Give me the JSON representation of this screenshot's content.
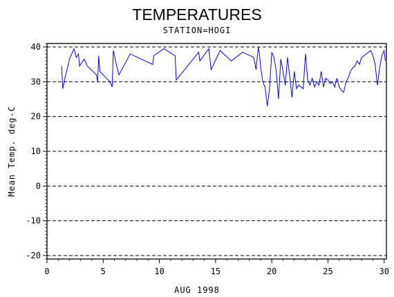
{
  "chart_data": {
    "type": "line",
    "title": "TEMPERATURES",
    "subtitle": "STATION=HOGI",
    "xlabel": "AUG 1998",
    "ylabel": "Mean Temp. deg-C",
    "xlim": [
      0,
      30.2
    ],
    "ylim": [
      -21,
      41
    ],
    "xticks": [
      0,
      5,
      10,
      15,
      20,
      25,
      30
    ],
    "yticks": [
      40,
      30,
      20,
      10,
      0,
      -10,
      -20
    ],
    "ytick_labels": [
      "40",
      "30",
      "20",
      "10",
      "0",
      "-10",
      "-20"
    ],
    "grid": "dashed horizontal reference lines at 40, 30, 20, 10, 0, -10, -20",
    "line_color": "#0000ff",
    "series": [
      {
        "x": [
          1.3,
          1.4,
          1.6,
          2.0,
          2.4,
          2.6,
          2.8,
          2.9,
          3.3,
          3.6,
          4.4,
          4.5,
          4.6,
          4.7,
          5.6,
          5.8,
          5.9,
          6.2,
          6.4,
          7.4,
          9.4,
          9.5,
          10.4,
          11.4,
          11.5,
          13.5,
          13.6,
          14.4,
          14.6,
          15.4,
          16.4,
          17.4,
          18.4,
          18.6,
          18.8,
          18.9,
          19.0,
          19.2,
          19.4,
          19.6,
          19.8,
          20.0,
          20.2,
          20.4,
          20.6,
          20.8,
          21.0,
          21.2,
          21.4,
          21.6,
          21.8,
          22.0,
          22.2,
          22.4,
          22.6,
          22.8,
          23.0,
          23.2,
          23.4,
          23.6,
          23.8,
          24.0,
          24.2,
          24.4,
          24.6,
          24.8,
          25.0,
          25.2,
          25.4,
          25.6,
          25.8,
          26.0,
          26.2,
          26.4,
          26.6,
          26.8,
          27.0,
          27.2,
          27.4,
          27.6,
          27.8,
          28.0,
          28.2,
          28.4,
          28.6,
          28.8,
          29.0,
          29.2,
          29.4,
          29.6,
          29.8,
          30.0,
          30.1
        ],
        "y": [
          34.5,
          28.0,
          31.0,
          36.5,
          39.5,
          37.0,
          38.0,
          34.5,
          36.5,
          34.5,
          32.0,
          30.0,
          37.5,
          33.0,
          30.0,
          28.5,
          39.0,
          34.5,
          32.0,
          38.0,
          35.0,
          37.5,
          39.5,
          37.5,
          30.5,
          38.5,
          36.0,
          39.5,
          33.5,
          39.0,
          36.0,
          38.5,
          37.0,
          33.5,
          40.0,
          38.0,
          34.5,
          30.0,
          28.5,
          23.0,
          28.0,
          38.5,
          37.0,
          33.0,
          25.0,
          36.5,
          33.0,
          29.0,
          37.0,
          31.5,
          25.5,
          33.0,
          28.0,
          29.0,
          28.5,
          28.0,
          38.0,
          30.5,
          29.0,
          31.0,
          28.5,
          30.0,
          29.0,
          33.0,
          28.5,
          31.0,
          30.5,
          29.5,
          30.0,
          28.5,
          31.0,
          28.5,
          27.5,
          27.0,
          30.0,
          31.0,
          33.0,
          34.0,
          34.5,
          36.0,
          35.0,
          37.0,
          37.5,
          38.0,
          38.5,
          39.0,
          37.5,
          35.0,
          29.0,
          34.0,
          37.5,
          39.0,
          36.0
        ]
      }
    ]
  }
}
